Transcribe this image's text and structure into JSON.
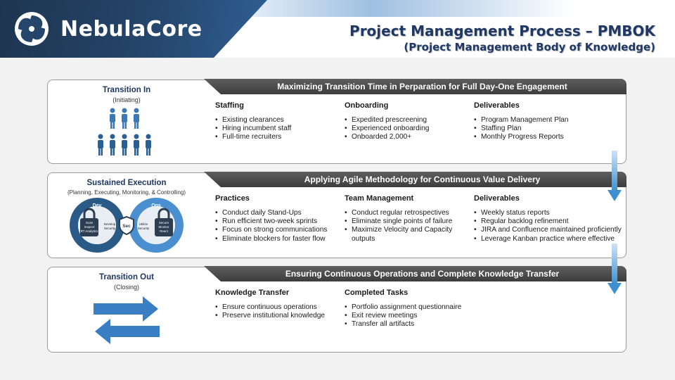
{
  "brand": {
    "name": "NebulaCore",
    "logo": "swirl-logo-icon"
  },
  "title": {
    "main": "Project Management Process – PMBOK",
    "sub": "(Project Management Body of Knowledge)"
  },
  "phases": [
    {
      "name": "Transition In",
      "sub": "(Initiating)",
      "banner": "Maximizing Transition Time in Perparation for Full Day-One Engagement",
      "columns": [
        {
          "title": "Staffing",
          "items": [
            "Existing clearances",
            "Hiring incumbent staff",
            "Full-time recruiters"
          ]
        },
        {
          "title": "Onboarding",
          "items": [
            "Expedited prescreening",
            "Experienced onboarding",
            "Onboarded 2,000+"
          ]
        },
        {
          "title": "Deliverables",
          "items": [
            "Program Management Plan",
            "Staffing Plan",
            "Monthly Progress Reports"
          ]
        }
      ]
    },
    {
      "name": "Sustained Execution",
      "sub": "(Planning, Executing, Monitoring, & Controlling)",
      "banner": "Applying Agile Methodology for Continuous Value Delivery",
      "diagram": {
        "dev": "Dev",
        "ops": "Ops",
        "center": "Sec",
        "dev_lock": [
          "Scan",
          "Inspect",
          "RT Analytics"
        ],
        "develop_security": [
          "Develop",
          "Security"
        ],
        "utilize_security": [
          "Utilize",
          "Security"
        ],
        "ops_lock": [
          "Secure",
          "Monitor",
          "React"
        ]
      },
      "columns": [
        {
          "title": "Practices",
          "items": [
            "Conduct daily Stand-Ups",
            "Run efficient two-week sprints",
            "Focus on strong communications",
            "Eliminate blockers for faster flow"
          ]
        },
        {
          "title": "Team Management",
          "items": [
            "Conduct regular retrospectives",
            "Eliminate single points of failure",
            "Maximize Velocity and Capacity outputs"
          ]
        },
        {
          "title": "Deliverables",
          "items": [
            "Weekly status reports",
            "Regular backlog refinement",
            "JIRA and Confluence maintained proficiently",
            "Leverage Kanban practice where effective"
          ]
        }
      ]
    },
    {
      "name": "Transition Out",
      "sub": "(Closing)",
      "banner": "Ensuring Continuous Operations and Complete Knowledge Transfer",
      "columns": [
        {
          "title": "Knowledge Transfer",
          "items": [
            "Ensure continuous operations",
            "Preserve institutional knowledge"
          ]
        },
        {
          "title": "Completed Tasks",
          "items": [
            "Portfolio assignment questionnaire",
            "Exit review meetings",
            "Transfer all artifacts"
          ]
        }
      ]
    }
  ],
  "colors": {
    "navy": "#1f3864",
    "accent_blue": "#2e6da4",
    "arrow_blue": "#3d8fd1",
    "banner_gray": "#4a4a4a"
  }
}
